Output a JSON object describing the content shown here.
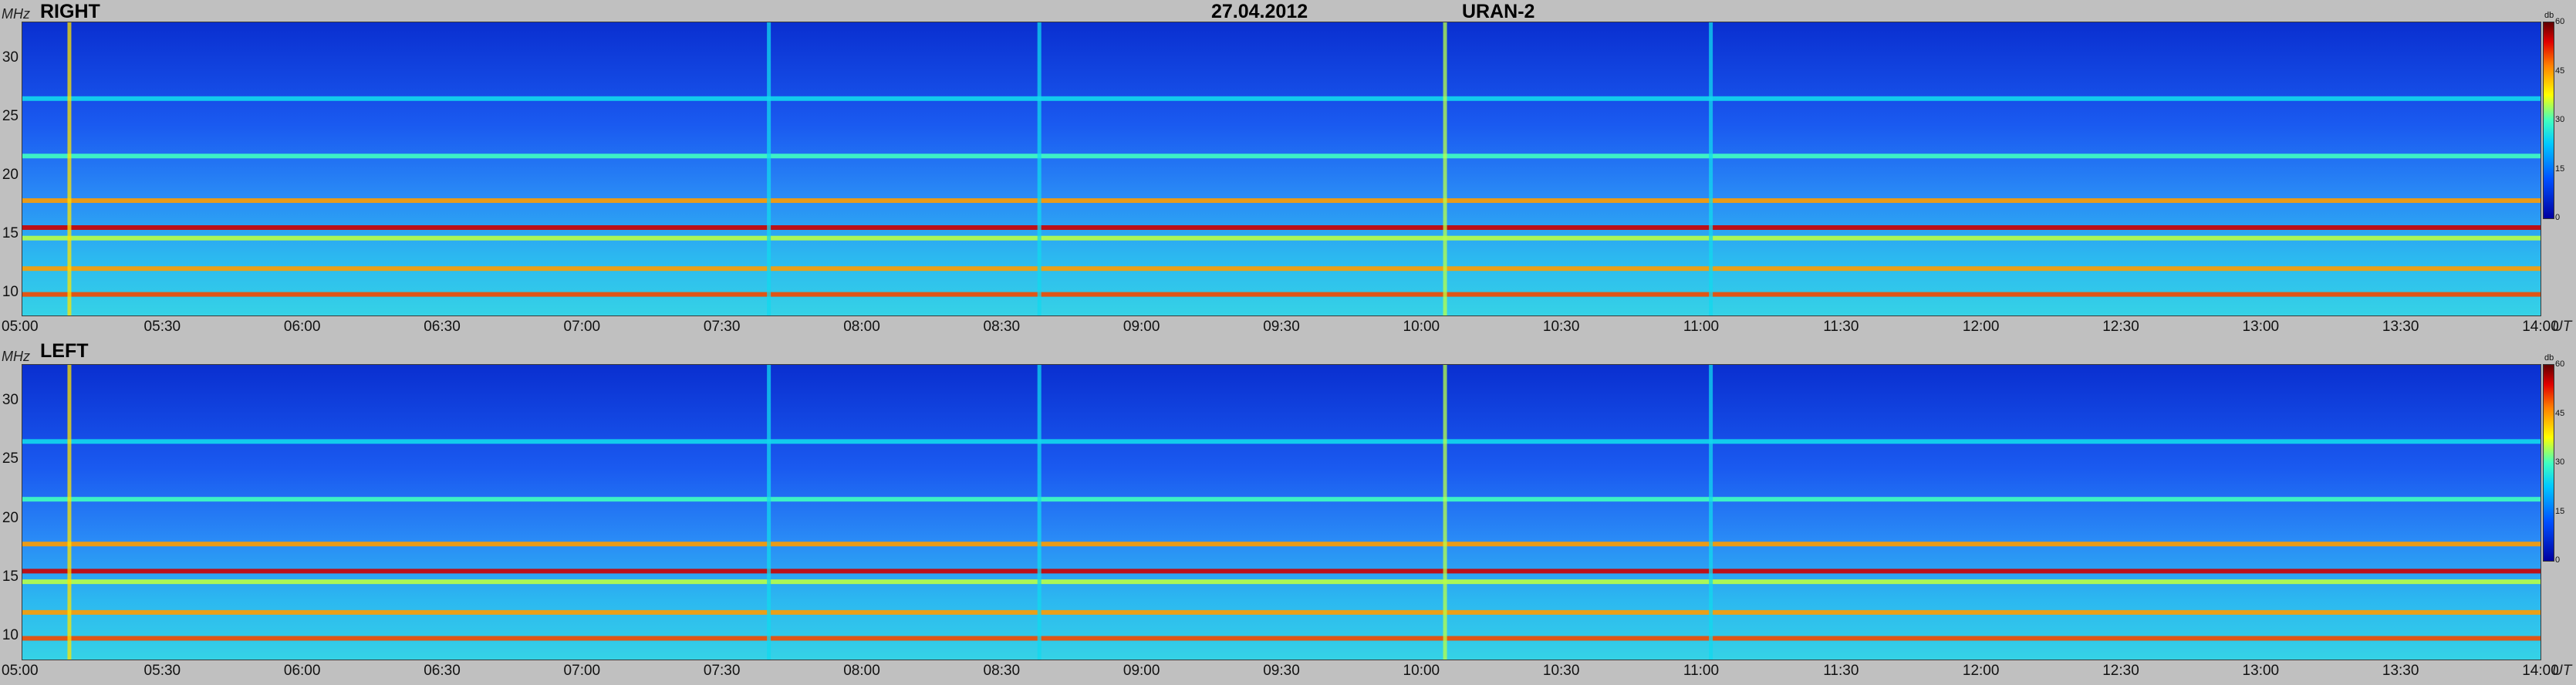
{
  "header": {
    "left_label": "RIGHT",
    "date": "27.04.2012",
    "instrument": "URAN-2"
  },
  "axes": {
    "y_unit": "MHz",
    "x_unit": "UT",
    "colorbar_unit": "db"
  },
  "chart_data": {
    "type": "heatmap",
    "title": "27.04.2012 URAN-2",
    "ylabel": "MHz",
    "xlabel": "UT",
    "x_range": [
      "05:00",
      "14:00"
    ],
    "ylim": [
      8,
      33
    ],
    "y_ticks": [
      "30",
      "25",
      "20",
      "15",
      "10"
    ],
    "x_ticks": [
      "05:00",
      "05:30",
      "06:00",
      "06:30",
      "07:00",
      "07:30",
      "08:00",
      "08:30",
      "09:00",
      "09:30",
      "10:00",
      "10:30",
      "11:00",
      "11:30",
      "12:00",
      "12:30",
      "13:00",
      "13:30",
      "14:00"
    ],
    "colorbar": {
      "unit": "db",
      "range": [
        0,
        60
      ],
      "ticks": [
        "60",
        "45",
        "30",
        "15",
        "0"
      ]
    },
    "panels": [
      {
        "name": "RIGHT"
      },
      {
        "name": "LEFT"
      }
    ],
    "horizontal_bands": [
      {
        "freq_mhz": 17.8,
        "level_db": 45
      },
      {
        "freq_mhz": 15.5,
        "level_db": 55
      },
      {
        "freq_mhz": 14.6,
        "level_db": 35
      },
      {
        "freq_mhz": 12.0,
        "level_db": 45
      },
      {
        "freq_mhz": 9.8,
        "level_db": 50
      },
      {
        "freq_mhz": 21.6,
        "level_db": 30
      },
      {
        "freq_mhz": 26.5,
        "level_db": 25
      }
    ],
    "vertical_bursts": [
      {
        "time": "05:10",
        "level_db": 40
      },
      {
        "time": "07:40",
        "level_db": 25
      },
      {
        "time": "08:38",
        "level_db": 25
      },
      {
        "time": "10:05",
        "level_db": 35
      },
      {
        "time": "11:02",
        "level_db": 25
      }
    ]
  },
  "colors": {
    "background": "#c0c0c0",
    "spectrum_base": "#0a3cd6"
  }
}
